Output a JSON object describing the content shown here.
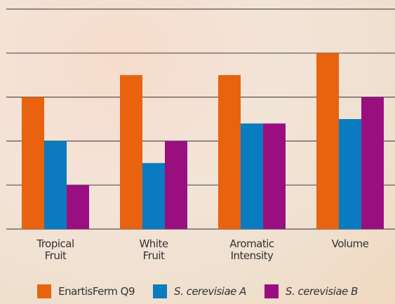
{
  "chart_data": {
    "type": "bar",
    "categories": [
      "Tropical\nFruit",
      "White\nFruit",
      "Aromatic\nIntensity",
      "Volume"
    ],
    "series": [
      {
        "name": "EnartisFerm Q9",
        "color": "#e8620f",
        "values": [
          3,
          3.5,
          3.5,
          4
        ]
      },
      {
        "name": "S. cerevisiae A",
        "color": "#0a7bc1",
        "values": [
          2,
          1.5,
          2.4,
          2.5
        ]
      },
      {
        "name": "S. cerevisiae B",
        "color": "#9a0f80",
        "values": [
          1,
          2,
          2.4,
          3
        ]
      }
    ],
    "ylim": [
      0,
      5
    ],
    "yticks": [
      0,
      1,
      2,
      3,
      4,
      5
    ],
    "grid": true
  }
}
